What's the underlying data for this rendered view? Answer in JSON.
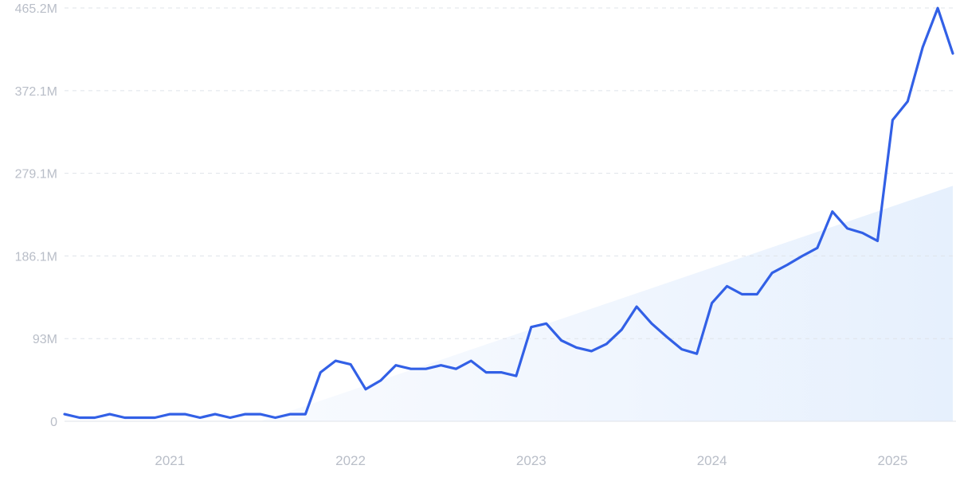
{
  "chart_data": {
    "type": "line",
    "title": "",
    "xlabel": "",
    "ylabel": "",
    "grid": true,
    "legend": "none",
    "y_ticks": [
      0,
      93,
      186.1,
      279.1,
      372.1,
      465.2
    ],
    "y_tick_labels": [
      "0",
      "93M",
      "186.1M",
      "279.1M",
      "372.1M",
      "465.2M"
    ],
    "ylim": [
      0,
      465.2
    ],
    "x_tick_labels": [
      "2021",
      "2022",
      "2023",
      "2024",
      "2025"
    ],
    "x_ticks": [
      "2021-01",
      "2022-01",
      "2023-01",
      "2024-01",
      "2025-01"
    ],
    "xlim": [
      "2020-06",
      "2025-05"
    ],
    "series": [
      {
        "color": "#3260e6",
        "x": [
          "2020-06",
          "2020-07",
          "2020-08",
          "2020-09",
          "2020-10",
          "2020-11",
          "2020-12",
          "2021-01",
          "2021-02",
          "2021-03",
          "2021-04",
          "2021-05",
          "2021-06",
          "2021-07",
          "2021-08",
          "2021-09",
          "2021-10",
          "2021-11",
          "2021-12",
          "2022-01",
          "2022-02",
          "2022-03",
          "2022-04",
          "2022-05",
          "2022-06",
          "2022-07",
          "2022-08",
          "2022-09",
          "2022-10",
          "2022-11",
          "2022-12",
          "2023-01",
          "2023-02",
          "2023-03",
          "2023-04",
          "2023-05",
          "2023-06",
          "2023-07",
          "2023-08",
          "2023-09",
          "2023-10",
          "2023-11",
          "2023-12",
          "2024-01",
          "2024-02",
          "2024-03",
          "2024-04",
          "2024-05",
          "2024-06",
          "2024-07",
          "2024-08",
          "2024-09",
          "2024-10",
          "2024-11",
          "2024-12",
          "2025-01",
          "2025-02",
          "2025-03",
          "2025-04",
          "2025-05"
        ],
        "values": [
          8,
          4,
          4,
          8,
          4,
          4,
          4,
          8,
          8,
          4,
          8,
          4,
          8,
          8,
          4,
          8,
          8,
          55,
          68,
          64,
          36,
          46,
          63,
          59,
          59,
          63,
          59,
          68,
          55,
          55,
          51,
          106,
          110,
          91,
          83,
          79,
          87,
          103,
          129,
          110,
          95,
          81,
          76,
          133,
          152,
          143,
          143,
          167,
          176,
          186,
          195,
          236,
          217,
          212,
          203,
          339,
          360,
          421,
          465,
          414
        ]
      }
    ],
    "trend": {
      "color": "#e6f0fd",
      "start": {
        "x": "2021-07",
        "value": 0
      },
      "end": {
        "x": "2025-05",
        "value": 265
      }
    }
  }
}
